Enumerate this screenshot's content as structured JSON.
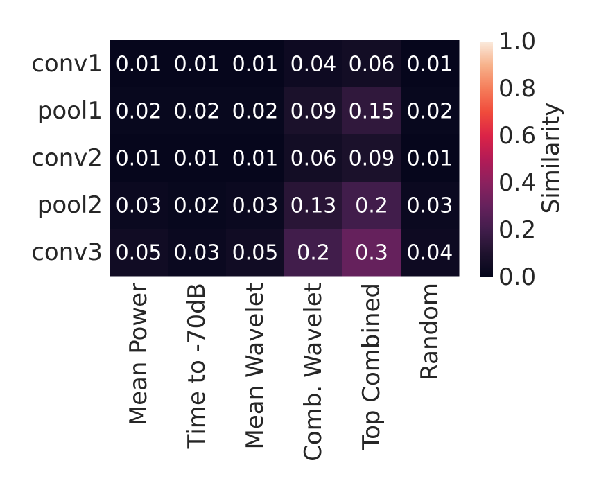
{
  "chart_data": {
    "type": "heatmap",
    "rows": [
      "conv1",
      "pool1",
      "conv2",
      "pool2",
      "conv3"
    ],
    "columns": [
      "Mean Power",
      "Time to -70dB",
      "Mean Wavelet",
      "Comb. Wavelet",
      "Top Combined",
      "Random"
    ],
    "values": [
      [
        0.01,
        0.01,
        0.01,
        0.04,
        0.06,
        0.01
      ],
      [
        0.02,
        0.02,
        0.02,
        0.09,
        0.15,
        0.02
      ],
      [
        0.01,
        0.01,
        0.01,
        0.06,
        0.09,
        0.01
      ],
      [
        0.03,
        0.02,
        0.03,
        0.13,
        0.2,
        0.03
      ],
      [
        0.05,
        0.03,
        0.05,
        0.2,
        0.3,
        0.04
      ]
    ],
    "colorbar": {
      "label": "Similarity",
      "vmin": 0.0,
      "vmax": 1.0,
      "ticks": [
        "0.0",
        "0.2",
        "0.4",
        "0.6",
        "0.8",
        "1.0"
      ],
      "colormap": "rocket"
    },
    "annotations_color": "#ffffff"
  }
}
